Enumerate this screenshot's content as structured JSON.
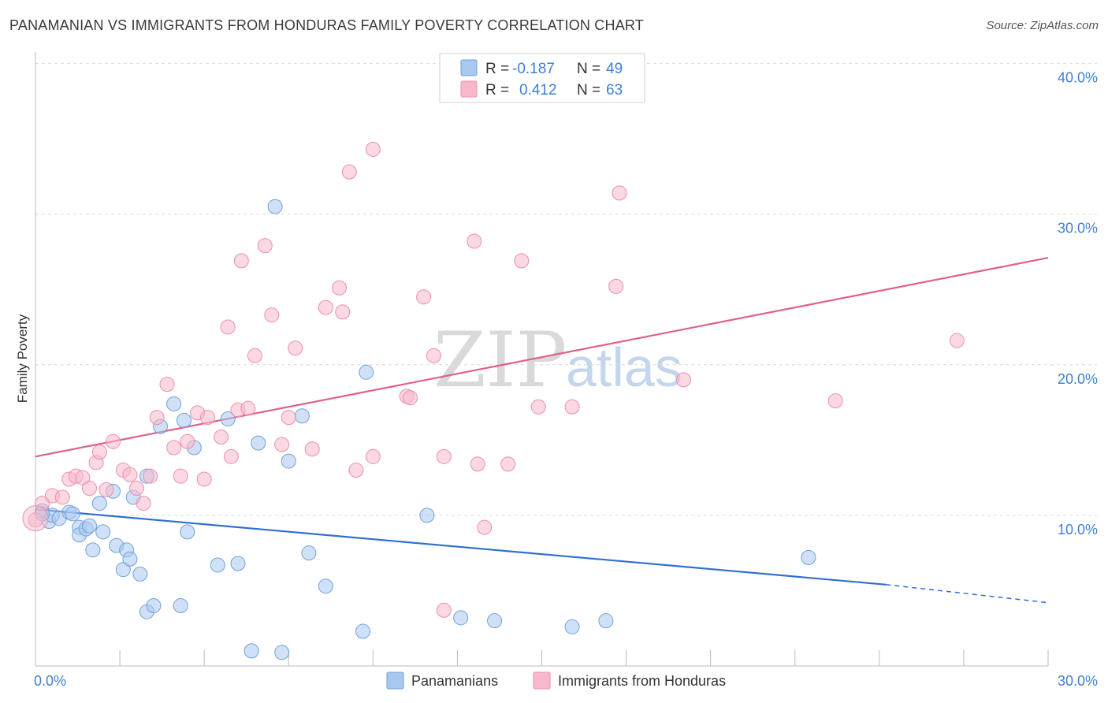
{
  "title": "PANAMANIAN VS IMMIGRANTS FROM HONDURAS FAMILY POVERTY CORRELATION CHART",
  "source": "Source: ZipAtlas.com",
  "watermark": {
    "zip": "ZIP",
    "atlas": "atlas"
  },
  "legend": {
    "rows": [
      {
        "r_label": "R =",
        "r_value": "-0.187",
        "n_label": "N =",
        "n_value": "49",
        "color": "#a9c8f0"
      },
      {
        "r_label": "R =",
        "r_value": "0.412",
        "n_label": "N =",
        "n_value": "63",
        "color": "#f7b8cb"
      }
    ]
  },
  "bottom_legend": [
    {
      "label": "Panamanians",
      "color": "#a9c8f0"
    },
    {
      "label": "Immigrants from Honduras",
      "color": "#f7b8cb"
    }
  ],
  "chart_data": {
    "type": "scatter",
    "ylabel": "Family Poverty",
    "xlabel": "",
    "xlim": [
      0,
      30
    ],
    "ylim": [
      0,
      40
    ],
    "x_tick_labels": [
      "0.0%",
      "30.0%"
    ],
    "y_ticks": [
      {
        "value": 10,
        "label": "10.0%"
      },
      {
        "value": 20,
        "label": "20.0%"
      },
      {
        "value": 30,
        "label": "30.0%"
      },
      {
        "value": 40,
        "label": "40.0%"
      }
    ],
    "grid": true,
    "series": [
      {
        "name": "Panamanians",
        "color": "#a9c8f0",
        "stroke": "#6fa0dc",
        "trend": {
          "x0": 0,
          "y0": 10.4,
          "x1": 25.2,
          "y1": 5.4,
          "dash_to_x": 30,
          "dash_to_y": 4.2,
          "color": "#2f6fd0"
        },
        "points": [
          [
            0.2,
            10.3
          ],
          [
            0.4,
            9.6
          ],
          [
            0.5,
            10.0
          ],
          [
            0.7,
            9.8
          ],
          [
            1.0,
            10.2
          ],
          [
            1.3,
            9.2
          ],
          [
            1.3,
            8.7
          ],
          [
            1.5,
            9.1
          ],
          [
            1.6,
            9.3
          ],
          [
            1.7,
            7.7
          ],
          [
            1.9,
            10.8
          ],
          [
            2.0,
            8.9
          ],
          [
            2.3,
            11.6
          ],
          [
            2.4,
            8.0
          ],
          [
            2.6,
            6.4
          ],
          [
            2.7,
            7.7
          ],
          [
            2.8,
            7.1
          ],
          [
            2.9,
            11.2
          ],
          [
            3.1,
            6.1
          ],
          [
            3.3,
            12.6
          ],
          [
            3.3,
            3.6
          ],
          [
            3.5,
            4.0
          ],
          [
            3.7,
            15.9
          ],
          [
            4.1,
            17.4
          ],
          [
            4.3,
            4.0
          ],
          [
            4.4,
            16.3
          ],
          [
            4.5,
            8.9
          ],
          [
            4.7,
            14.5
          ],
          [
            5.4,
            6.7
          ],
          [
            5.7,
            16.4
          ],
          [
            6.0,
            6.8
          ],
          [
            6.4,
            1.0
          ],
          [
            6.6,
            14.8
          ],
          [
            7.1,
            30.5
          ],
          [
            7.3,
            0.9
          ],
          [
            7.5,
            13.6
          ],
          [
            7.9,
            16.6
          ],
          [
            8.1,
            7.5
          ],
          [
            8.6,
            5.3
          ],
          [
            9.7,
            2.3
          ],
          [
            9.8,
            19.5
          ],
          [
            11.6,
            10.0
          ],
          [
            12.6,
            3.2
          ],
          [
            13.6,
            3.0
          ],
          [
            15.9,
            2.6
          ],
          [
            16.9,
            3.0
          ],
          [
            22.9,
            7.2
          ],
          [
            0.2,
            10.1
          ],
          [
            1.1,
            10.1
          ]
        ]
      },
      {
        "name": "Immigrants from Honduras",
        "color": "#f7b8cb",
        "stroke": "#ec8fab",
        "trend": {
          "x0": 0,
          "y0": 13.9,
          "x1": 30,
          "y1": 27.1,
          "color": "#e0608a"
        },
        "points": [
          [
            0.0,
            9.7
          ],
          [
            0.2,
            10.8
          ],
          [
            0.5,
            11.3
          ],
          [
            0.8,
            11.2
          ],
          [
            1.0,
            12.4
          ],
          [
            1.2,
            12.6
          ],
          [
            1.4,
            12.5
          ],
          [
            1.6,
            11.8
          ],
          [
            1.8,
            13.5
          ],
          [
            1.9,
            14.2
          ],
          [
            2.1,
            11.7
          ],
          [
            2.3,
            14.9
          ],
          [
            2.6,
            13.0
          ],
          [
            2.8,
            12.7
          ],
          [
            3.0,
            11.8
          ],
          [
            3.2,
            10.8
          ],
          [
            3.4,
            12.6
          ],
          [
            3.6,
            16.5
          ],
          [
            3.9,
            18.7
          ],
          [
            4.1,
            14.5
          ],
          [
            4.3,
            12.6
          ],
          [
            4.5,
            14.9
          ],
          [
            4.8,
            16.8
          ],
          [
            5.0,
            12.4
          ],
          [
            5.1,
            16.5
          ],
          [
            5.5,
            15.2
          ],
          [
            5.7,
            22.5
          ],
          [
            5.8,
            13.9
          ],
          [
            6.0,
            17.0
          ],
          [
            6.1,
            26.9
          ],
          [
            6.3,
            17.1
          ],
          [
            6.5,
            20.6
          ],
          [
            6.8,
            27.9
          ],
          [
            7.0,
            23.3
          ],
          [
            7.3,
            14.7
          ],
          [
            7.5,
            16.5
          ],
          [
            7.7,
            21.1
          ],
          [
            8.2,
            14.4
          ],
          [
            8.6,
            23.8
          ],
          [
            9.0,
            25.1
          ],
          [
            9.1,
            23.5
          ],
          [
            9.3,
            32.8
          ],
          [
            9.5,
            13.0
          ],
          [
            10.0,
            34.3
          ],
          [
            10.0,
            13.9
          ],
          [
            11.0,
            17.9
          ],
          [
            11.1,
            17.8
          ],
          [
            11.5,
            24.5
          ],
          [
            11.8,
            20.6
          ],
          [
            12.1,
            13.9
          ],
          [
            12.1,
            3.7
          ],
          [
            13.0,
            28.2
          ],
          [
            13.1,
            13.4
          ],
          [
            13.3,
            9.2
          ],
          [
            14.0,
            13.4
          ],
          [
            14.4,
            26.9
          ],
          [
            14.9,
            17.2
          ],
          [
            15.9,
            17.2
          ],
          [
            17.2,
            25.2
          ],
          [
            17.3,
            31.4
          ],
          [
            19.2,
            19.0
          ],
          [
            23.7,
            17.6
          ],
          [
            27.3,
            21.6
          ]
        ]
      }
    ]
  }
}
